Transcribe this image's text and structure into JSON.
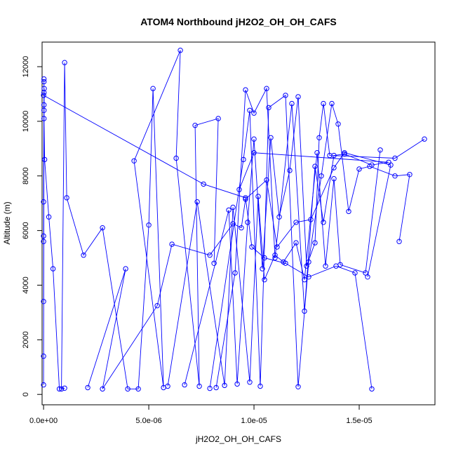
{
  "chart_data": {
    "type": "line",
    "title": "ATOM4 Northbound jH2O2_OH_OH_CAFS",
    "xlabel": "jH2O2_OH_OH_CAFS",
    "ylabel": "Altitude (m)",
    "xlim": [
      -7e-08,
      1.86e-05
    ],
    "ylim": [
      -380,
      12900
    ],
    "xticks": [
      0,
      5e-06,
      1e-05,
      1.5e-05
    ],
    "xtick_labels": [
      "0.0e+00",
      "5.0e-06",
      "1.0e-05",
      "1.5e-05"
    ],
    "yticks": [
      0,
      2000,
      4000,
      6000,
      8000,
      10000,
      12000
    ],
    "ytick_labels": [
      "0",
      "2000",
      "4000",
      "6000",
      "8000",
      "10000",
      "12000"
    ],
    "grid": false,
    "markers": "open-circle",
    "color": "#0000ff",
    "series": [
      {
        "x": [
          1e-06,
          7.5e-07,
          4.5e-07,
          2.5e-07,
          5e-08,
          2e-08,
          0.0,
          2e-08,
          0.0,
          3e-08,
          0.0,
          2e-08,
          0.0,
          2e-08,
          0.0,
          2e-08,
          0.0,
          2e-08,
          0.0,
          7.6e-06,
          9.6e-06,
          9.9e-06,
          1.05e-05,
          1.15e-05,
          1.26e-05,
          1.39e-05,
          1.48e-05,
          1.56e-05
        ],
        "y": [
          230,
          200,
          4600,
          6500,
          8600,
          10100,
          350,
          10400,
          5800,
          11200,
          7050,
          11550,
          1400,
          10600,
          3400,
          11450,
          5600,
          11050,
          10950,
          7700,
          7200,
          5400,
          5000,
          4800,
          4300,
          4700,
          4450,
          200
        ]
      },
      {
        "x": [
          8.5e-07,
          1e-06,
          1.1e-06,
          1.9e-06,
          2.8e-06,
          4e-06,
          4.5e-06,
          5e-06,
          5.2e-06,
          5.7e-06,
          4.3e-06,
          6.5e-06,
          6.3e-06,
          7.4e-06,
          7.2e-06,
          8.3e-06,
          8.1e-06
        ],
        "y": [
          200,
          12150,
          7200,
          5100,
          6100,
          200,
          200,
          6200,
          11200,
          250,
          8550,
          12600,
          8650,
          300,
          9850,
          10100,
          4800
        ]
      },
      {
        "x": [
          2.1e-06,
          3.9e-06,
          2.8e-06,
          5.4e-06,
          6.1e-06,
          7.9e-06,
          9e-06,
          9.4e-06,
          9.6e-06,
          1.06e-05,
          1.11e-05,
          1.2e-05,
          1.27e-05,
          1.38e-05,
          1.43e-05,
          1.65e-05,
          1.54e-05
        ],
        "y": [
          250,
          4600,
          200,
          3250,
          5500,
          5100,
          6250,
          6100,
          7150,
          7850,
          5400,
          6300,
          6400,
          8300,
          8850,
          8400,
          4300
        ]
      },
      {
        "x": [
          5.9e-06,
          7.3e-06,
          8.6e-06,
          9e-06,
          9.8e-06,
          1.02e-05,
          1.05e-05,
          1.1e-05,
          1.14e-05,
          1.2e-05,
          1.24e-05,
          1.3e-05,
          1.34e-05,
          1.38e-05,
          1.41e-05,
          1.53e-05,
          1.6e-05
        ],
        "y": [
          300,
          7050,
          330,
          6850,
          450,
          7250,
          4200,
          5100,
          4850,
          5550,
          4200,
          8850,
          4700,
          7900,
          4750,
          4450,
          8950
        ]
      },
      {
        "x": [
          6.7e-06,
          8.8e-06,
          9.2e-06,
          9.7e-06,
          1e-05,
          1.04e-05,
          1.08e-05,
          1.12e-05,
          1.17e-05,
          1.21e-05,
          1.25e-05,
          1.29e-05,
          1.31e-05,
          1.33e-05,
          1.36e-05,
          1.67e-05,
          1.81e-05
        ],
        "y": [
          350,
          6750,
          380,
          6300,
          9350,
          4600,
          9400,
          6500,
          8200,
          10900,
          4700,
          5550,
          9400,
          10650,
          8750,
          8650,
          9350
        ]
      },
      {
        "x": [
          7.9e-06,
          9.5e-06,
          9.8e-06,
          1.03e-05,
          1.07e-05,
          1.15e-05,
          1.21e-05,
          1.26e-05,
          1.32e-05,
          1.37e-05,
          1.4e-05,
          1.45e-05,
          1.5e-05,
          1.55e-05,
          1.67e-05,
          1.74e-05,
          1.69e-05
        ],
        "y": [
          220,
          8600,
          10400,
          300,
          10500,
          10950,
          280,
          4850,
          8000,
          10650,
          9900,
          6700,
          8250,
          8350,
          8000,
          8050,
          5600
        ]
      },
      {
        "x": [
          8.2e-06,
          9.1e-06,
          9.6e-06,
          1e-05,
          1.06e-05,
          1.1e-05,
          1.18e-05,
          1.24e-05,
          1.29e-05,
          1.33e-05,
          1.38e-05,
          1.43e-05,
          1.56e-05,
          1.64e-05,
          1e-05,
          9.3e-06
        ],
        "y": [
          250,
          4450,
          11150,
          10300,
          11200,
          5000,
          10650,
          3050,
          8350,
          6300,
          8750,
          8800,
          8400,
          8500,
          8850,
          7500
        ]
      }
    ]
  }
}
